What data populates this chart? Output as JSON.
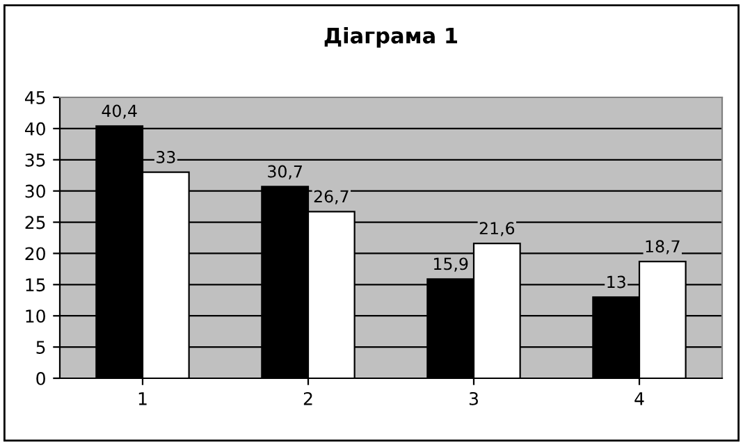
{
  "chart_data": {
    "type": "bar",
    "title": "Діаграма 1",
    "categories": [
      "1",
      "2",
      "3",
      "4"
    ],
    "series": [
      {
        "color": "#000000",
        "values": [
          40.4,
          30.7,
          15.9,
          13
        ],
        "value_labels": [
          "40,4",
          "30,7",
          "15,9",
          "13"
        ]
      },
      {
        "color": "#ffffff",
        "values": [
          33,
          26.7,
          21.6,
          18.7
        ],
        "value_labels": [
          "33",
          "26,7",
          "21,6",
          "18,7"
        ]
      }
    ],
    "ylim": [
      0,
      45
    ],
    "yticks": [
      0,
      5,
      10,
      15,
      20,
      25,
      30,
      35,
      40,
      45
    ],
    "grid": "y"
  }
}
